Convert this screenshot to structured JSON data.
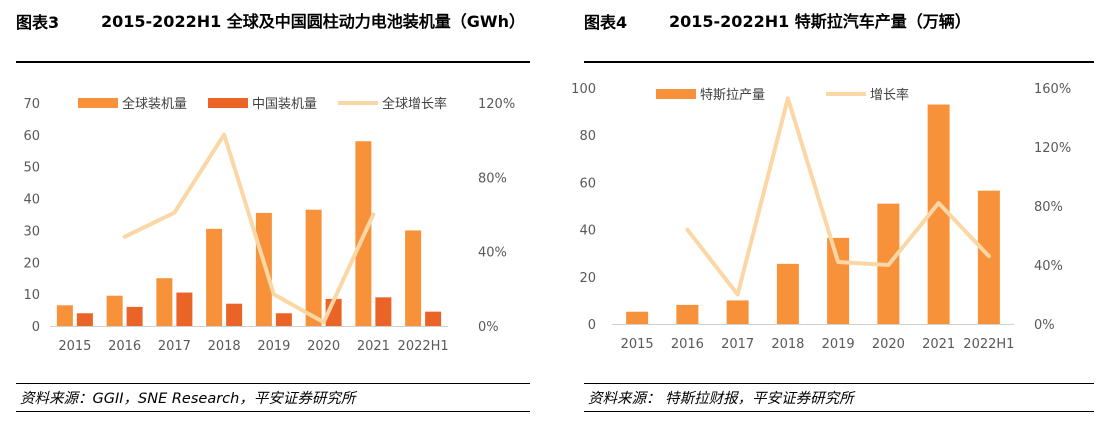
{
  "left": {
    "figure_number": "图表3",
    "title": "2015-2022H1 全球及中国圆柱动力电池装机量（GWh）",
    "source": "资料来源：GGII，SNE Research，平安证券研究所"
  },
  "right": {
    "figure_number": "图表4",
    "title": "2015-2022H1 特斯拉汽车产量（万辆）",
    "source": "资料来源： 特斯拉财报，平安证券研究所"
  },
  "chart_data": [
    {
      "type": "bar",
      "categories": [
        "2015",
        "2016",
        "2017",
        "2018",
        "2019",
        "2020",
        "2021",
        "2022H1"
      ],
      "series": [
        {
          "name": "全球装机量",
          "kind": "bar",
          "axis": "left",
          "color": "#F7923A",
          "values": [
            6.5,
            9.5,
            15,
            30.5,
            35.5,
            36.5,
            58,
            30
          ]
        },
        {
          "name": "中国装机量",
          "kind": "bar",
          "axis": "left",
          "color": "#EA6427",
          "values": [
            4,
            6,
            10.5,
            7,
            4,
            8.5,
            9,
            4.5
          ]
        },
        {
          "name": "全球增长率",
          "kind": "line",
          "axis": "right",
          "color": "#FAD7A4",
          "values": [
            null,
            48,
            61,
            103,
            17,
            2,
            60,
            null
          ]
        }
      ],
      "y_left": {
        "min": 0,
        "max": 70,
        "ticks": [
          0,
          10,
          20,
          30,
          40,
          50,
          60,
          70
        ],
        "labels": [
          "0",
          "10",
          "20",
          "30",
          "40",
          "50",
          "60",
          "70"
        ]
      },
      "y_right": {
        "min": 0,
        "max": 120,
        "ticks": [
          0,
          40,
          80,
          120
        ],
        "labels": [
          "0%",
          "40%",
          "80%",
          "120%"
        ]
      },
      "grid": false,
      "legend": "top"
    },
    {
      "type": "bar",
      "categories": [
        "2015",
        "2016",
        "2017",
        "2018",
        "2019",
        "2020",
        "2021",
        "2022H1"
      ],
      "series": [
        {
          "name": "特斯拉产量",
          "kind": "bar",
          "axis": "left",
          "color": "#F7923A",
          "values": [
            5.2,
            8.1,
            10,
            25.5,
            36.5,
            51,
            93,
            56.5
          ]
        },
        {
          "name": "增长率",
          "kind": "line",
          "axis": "right",
          "color": "#FAD7A4",
          "values": [
            null,
            64,
            20,
            153,
            42,
            40,
            82,
            46
          ]
        }
      ],
      "y_left": {
        "min": 0,
        "max": 100,
        "ticks": [
          0,
          20,
          40,
          60,
          80,
          100
        ],
        "labels": [
          "0",
          "20",
          "40",
          "60",
          "80",
          "100"
        ]
      },
      "y_right": {
        "min": 0,
        "max": 160,
        "ticks": [
          0,
          40,
          80,
          120,
          160
        ],
        "labels": [
          "0%",
          "40%",
          "80%",
          "120%",
          "160%"
        ]
      },
      "grid": false,
      "legend": "top"
    }
  ]
}
